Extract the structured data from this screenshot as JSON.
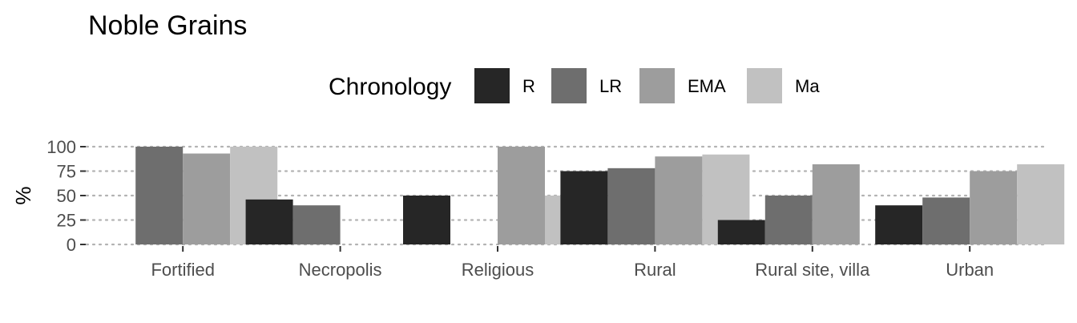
{
  "chart_data": {
    "type": "bar",
    "title": "Noble Grains",
    "xlabel": "",
    "ylabel": "%",
    "ylim": [
      0,
      100
    ],
    "yticks": [
      0,
      25,
      50,
      75,
      100
    ],
    "grid": true,
    "legend": {
      "title": "Chronology",
      "position": "top"
    },
    "categories": [
      "Fortified",
      "Necropolis",
      "Religious",
      "Rural",
      "Rural site, villa",
      "Urban"
    ],
    "series": [
      {
        "name": "R",
        "color": "#262626",
        "values": [
          null,
          46,
          50,
          75,
          25,
          40
        ]
      },
      {
        "name": "LR",
        "color": "#6e6e6e",
        "values": [
          100,
          40,
          null,
          78,
          50,
          48
        ]
      },
      {
        "name": "EMA",
        "color": "#9d9d9d",
        "values": [
          93,
          null,
          100,
          90,
          82,
          75
        ]
      },
      {
        "name": "Ma",
        "color": "#c1c1c1",
        "values": [
          100,
          null,
          50,
          92,
          null,
          82
        ]
      }
    ]
  }
}
